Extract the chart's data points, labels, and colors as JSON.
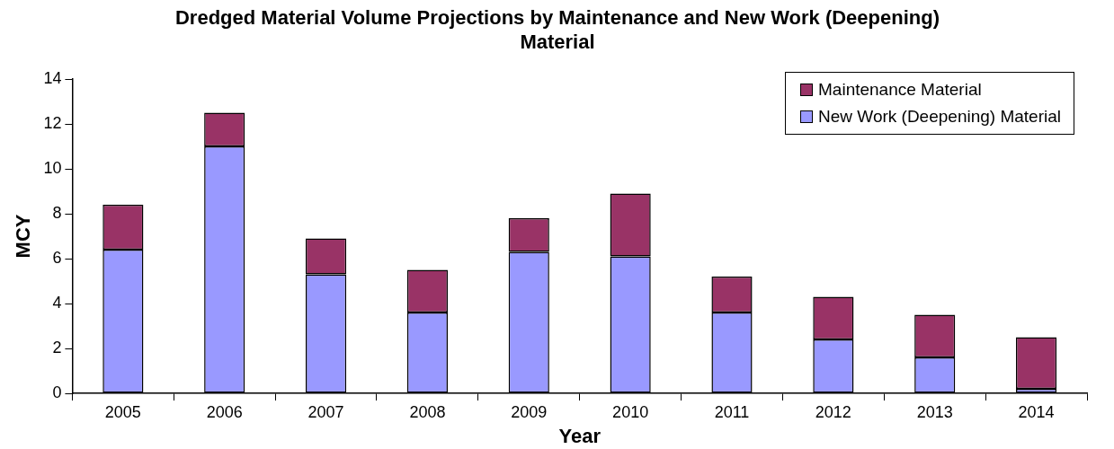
{
  "chart_data": {
    "type": "bar",
    "title": "Dredged Material Volume Projections by Maintenance and New Work (Deepening) Material",
    "xlabel": "Year",
    "ylabel": "MCY",
    "categories": [
      "2005",
      "2006",
      "2007",
      "2008",
      "2009",
      "2010",
      "2011",
      "2012",
      "2013",
      "2014"
    ],
    "stacked": true,
    "series": [
      {
        "name": "New Work (Deepening) Material",
        "color": "#9999ff",
        "values": [
          6.4,
          11.0,
          5.3,
          3.6,
          6.3,
          6.1,
          3.6,
          2.4,
          1.6,
          0.2
        ]
      },
      {
        "name": "Maintenance Material",
        "color": "#993366",
        "values": [
          2.0,
          1.5,
          1.6,
          1.9,
          1.5,
          2.8,
          1.6,
          1.9,
          1.9,
          2.3
        ]
      }
    ],
    "ylim": [
      0,
      14
    ],
    "yticks": [
      0,
      2,
      4,
      6,
      8,
      10,
      12,
      14
    ],
    "grid": false,
    "legend": "top right"
  }
}
